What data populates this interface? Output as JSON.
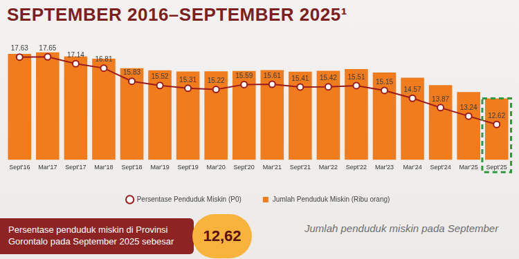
{
  "chart_data": {
    "type": "bar",
    "title": "SEPTEMBER 2016–SEPTEMBER 2025¹",
    "categories": [
      "Sept'16",
      "Mar'17",
      "Sept'17",
      "Mar'18",
      "Sept'18",
      "Mar'19",
      "Sept'19",
      "Mar'20",
      "Sept'20",
      "Mar'21",
      "Sept'21",
      "Mar'22",
      "Sept'22",
      "Mar'23",
      "Mar'24",
      "Sept'24",
      "Mar'25",
      "Sept'25"
    ],
    "series": [
      {
        "name": "Jumlah Penduduk Miskin (Ribu orang)",
        "type": "bar",
        "color": "#f07c1e",
        "values": [
          203.69,
          205.37,
          200.91,
          198.51,
          188.3,
          186.03,
          184.71,
          185.02,
          185.31,
          186.29,
          184.6,
          185.44,
          187.35,
          183.71,
          177.99,
          170.03,
          162.74,
          155.76
        ]
      },
      {
        "name": "Persentase Penduduk Miskin (P0)",
        "type": "line",
        "axis": "y2",
        "color": "#9b1c1c",
        "marker": "circle",
        "values": [
          17.63,
          17.65,
          17.14,
          16.81,
          15.83,
          15.52,
          15.31,
          15.22,
          15.59,
          15.61,
          15.41,
          15.42,
          15.51,
          15.15,
          14.57,
          13.87,
          13.24,
          12.62
        ]
      }
    ],
    "ylim": [
      90,
      220
    ],
    "y2lim": [
      10,
      19
    ],
    "legend": "bottom",
    "data_labels": true,
    "tick_labels": "x",
    "grid": false,
    "annotations": [
      "Persentase penduduk miskin di Provinsi Gorontalo pada September 2025 sebesar",
      "12,62",
      "Jumlah penduduk miskin pada September"
    ]
  }
}
